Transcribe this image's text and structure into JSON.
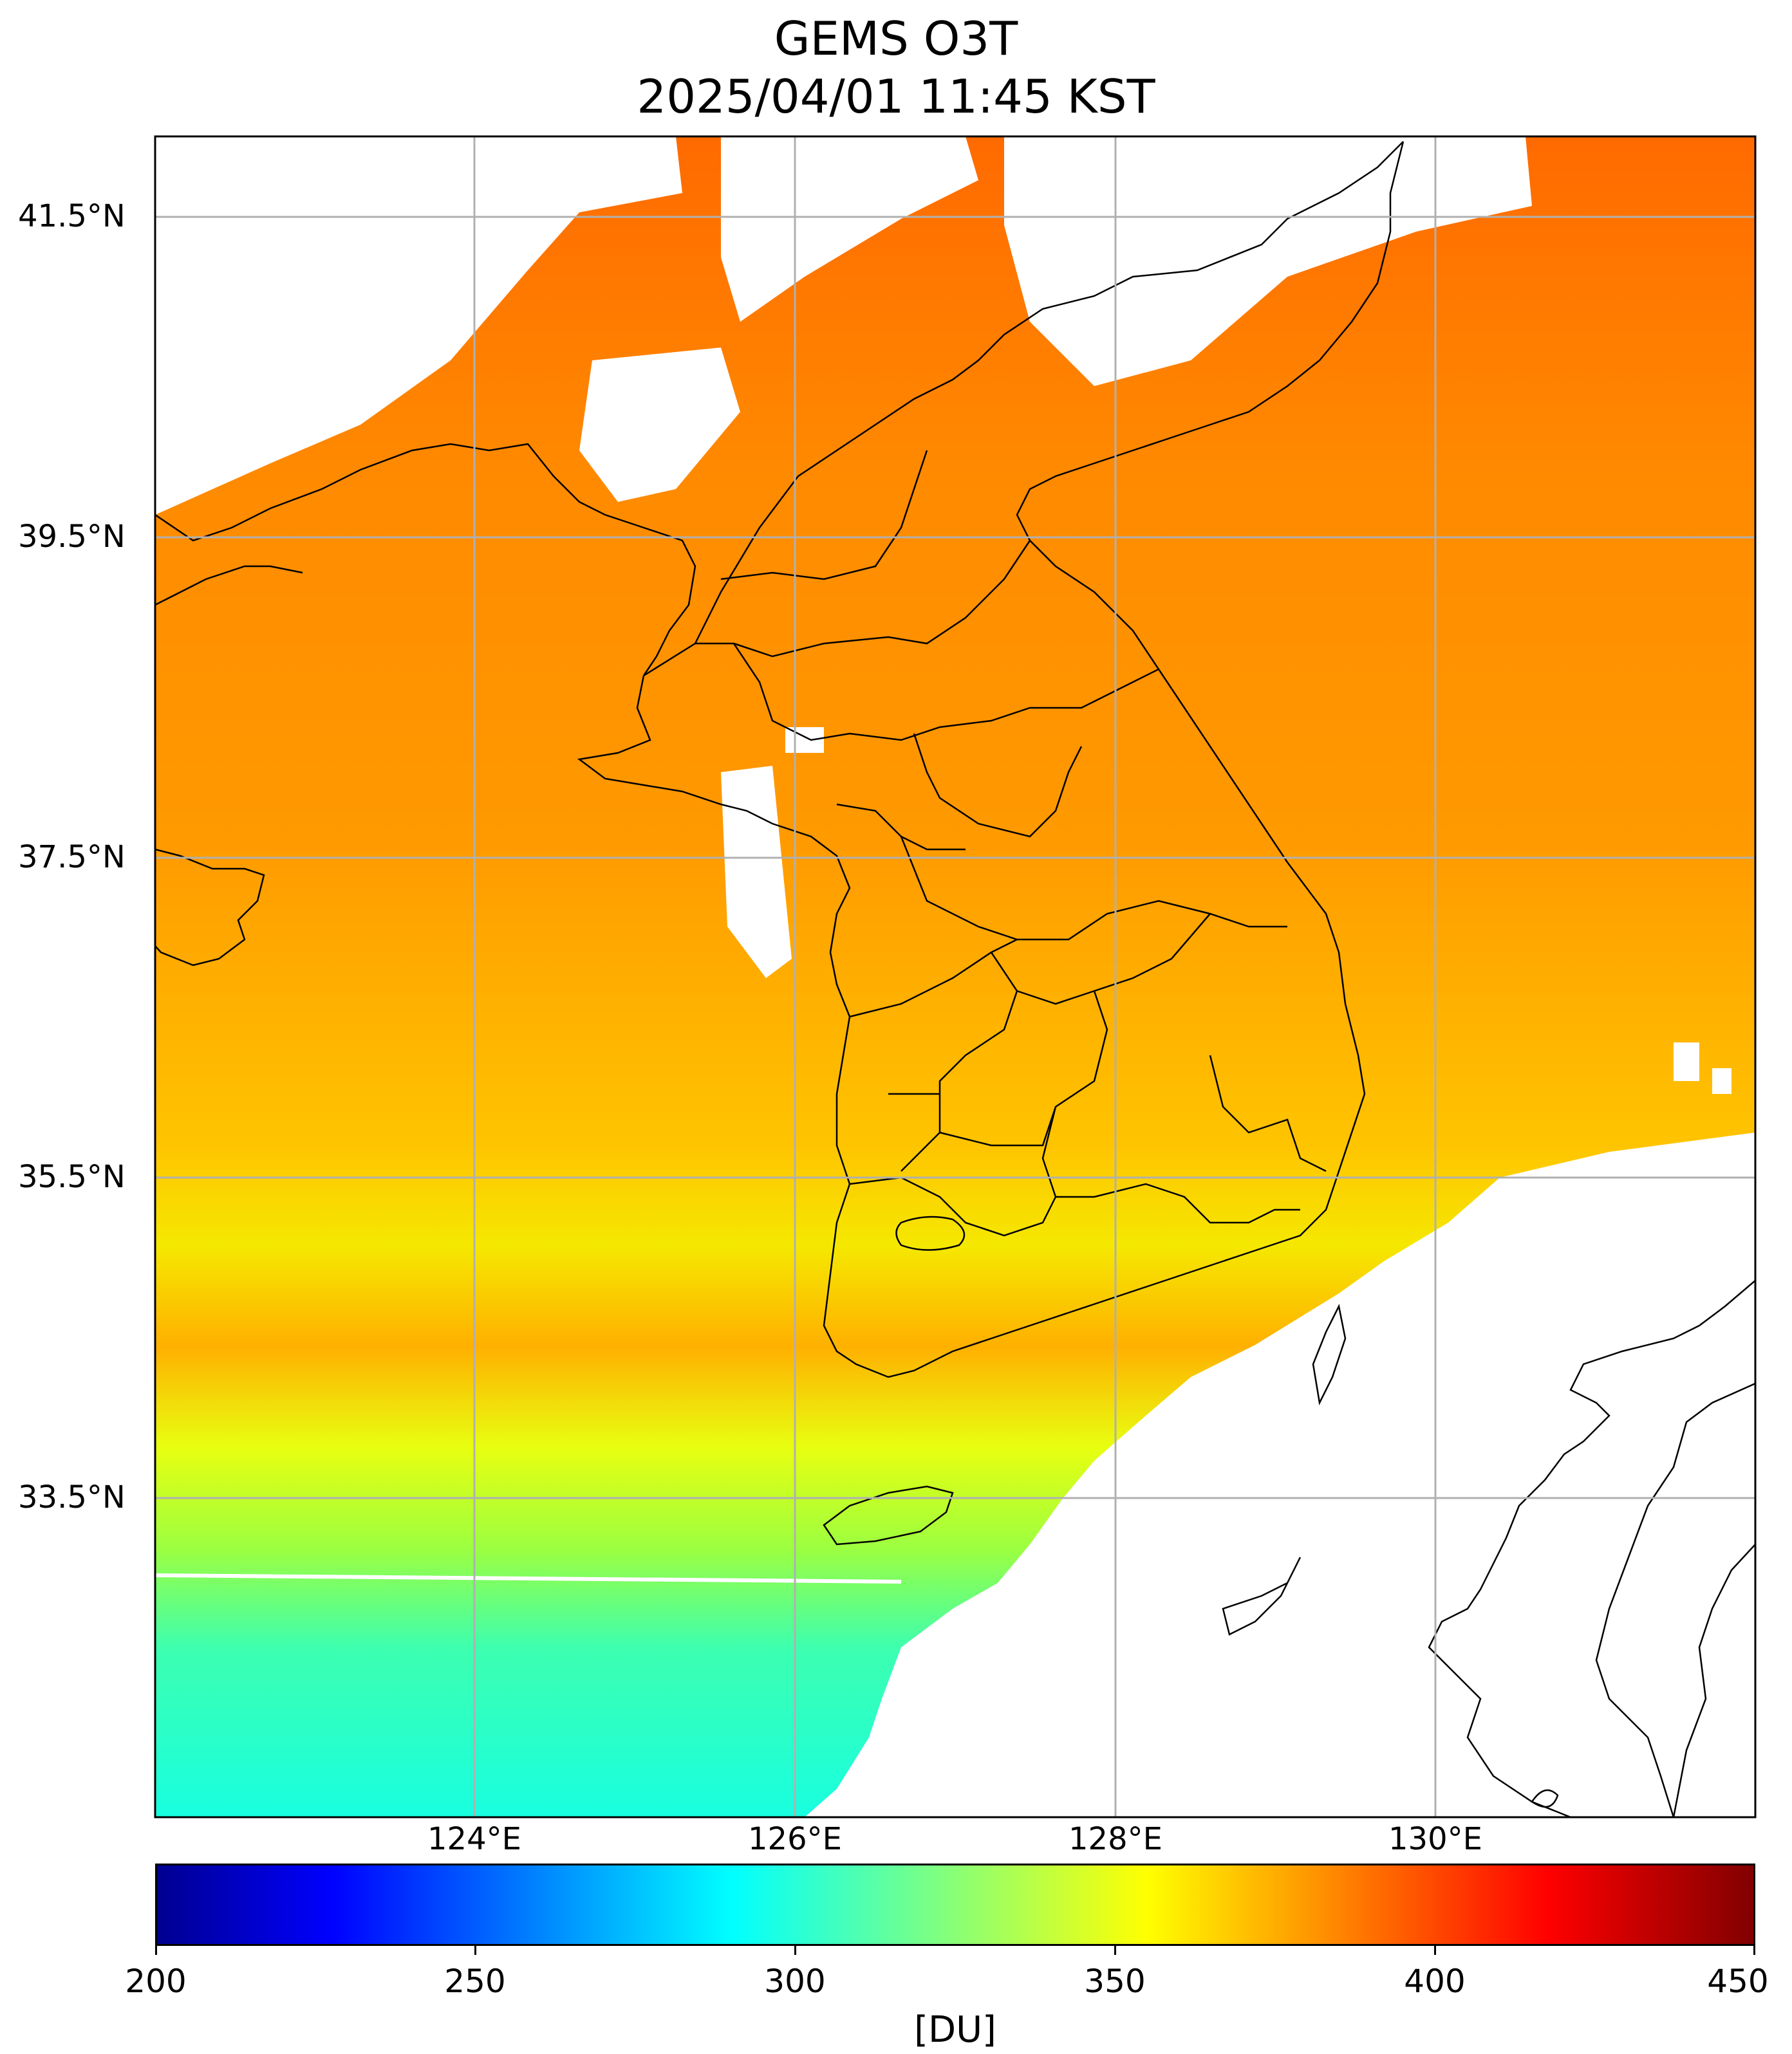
{
  "title_line1": "GEMS O3T",
  "title_line2": "2025/04/01 11:45 KST",
  "lat_labels": [
    "41.5°N",
    "39.5°N",
    "37.5°N",
    "35.5°N",
    "33.5°N"
  ],
  "lon_labels": [
    "124°E",
    "126°E",
    "128°E",
    "130°E"
  ],
  "colorbar": {
    "ticks": [
      "200",
      "250",
      "300",
      "350",
      "400",
      "450"
    ],
    "unit": "[DU]",
    "min": 200,
    "max": 450,
    "colormap": "jet"
  }
}
